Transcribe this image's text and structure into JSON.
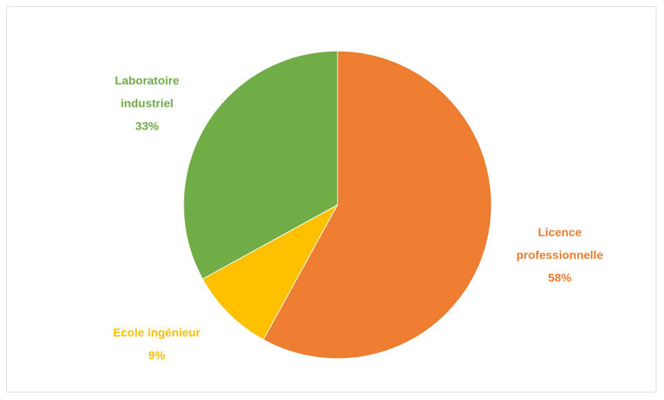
{
  "chart_data": {
    "type": "pie",
    "categories": [
      "Licence professionnelle",
      "Ecole ingénieur",
      "Laboratoire industriel"
    ],
    "values": [
      58,
      9,
      33
    ],
    "value_labels": [
      "58%",
      "9%",
      "33%"
    ],
    "colors": [
      "#ed7d31",
      "#ffc000",
      "#70ad47"
    ]
  }
}
